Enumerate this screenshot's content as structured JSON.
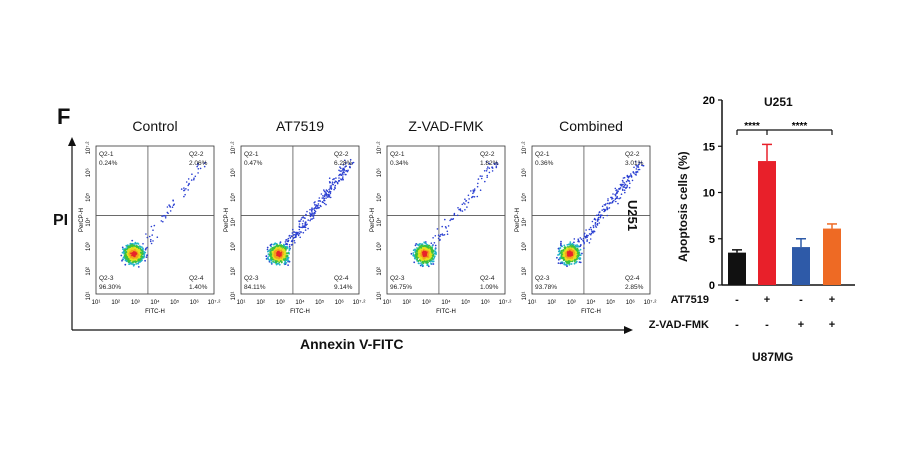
{
  "figure": {
    "panel_letter": "F",
    "y_axis_label": "PI",
    "x_axis_label": "Annexin V-FITC",
    "cell_line_label": "U251",
    "bottom_label": "U87MG"
  },
  "flow_panels": [
    {
      "title": "Control",
      "q1_name": "Q2-1",
      "q1_value": "0.24%",
      "q2_name": "Q2-2",
      "q2_value": "2.06%",
      "q3_name": "Q2-3",
      "q3_value": "96.30%",
      "q4_name": "Q2-4",
      "q4_value": "1.40%",
      "x_axis": "FITC-H",
      "y_axis": "PerCP-H"
    },
    {
      "title": "AT7519",
      "q1_name": "Q2-1",
      "q1_value": "0.47%",
      "q2_name": "Q2-2",
      "q2_value": "6.28%",
      "q3_name": "Q2-3",
      "q3_value": "84.11%",
      "q4_name": "Q2-4",
      "q4_value": "9.14%",
      "x_axis": "FITC-H",
      "y_axis": "PerCP-H"
    },
    {
      "title": "Z-VAD-FMK",
      "q1_name": "Q2-1",
      "q1_value": "0.34%",
      "q2_name": "Q2-2",
      "q2_value": "1.82%",
      "q3_name": "Q2-3",
      "q3_value": "96.75%",
      "q4_name": "Q2-4",
      "q4_value": "1.09%",
      "x_axis": "FITC-H",
      "y_axis": "PerCP-H"
    },
    {
      "title": "Combined",
      "q1_name": "Q2-1",
      "q1_value": "0.36%",
      "q2_name": "Q2-2",
      "q2_value": "3.01%",
      "q3_name": "Q2-3",
      "q3_value": "93.78%",
      "q4_name": "Q2-4",
      "q4_value": "2.85%",
      "x_axis": "FITC-H",
      "y_axis": "PerCP-H"
    }
  ],
  "flow_ticks": {
    "x": [
      "10¹",
      "10²",
      "10³",
      "10⁴",
      "10⁵",
      "10⁶",
      "10⁷·²"
    ],
    "y": [
      "10¹",
      "10²",
      "10³",
      "10⁴",
      "10⁵",
      "10⁶",
      "10⁷·²"
    ]
  },
  "chart_data": {
    "type": "bar",
    "title": "U251",
    "ylabel": "Apoptosis cells (%)",
    "ylim": [
      0,
      20
    ],
    "yticks": [
      0,
      5,
      10,
      15,
      20
    ],
    "ytick_labels": [
      "0",
      "5",
      "10",
      "15",
      "20"
    ],
    "values": [
      3.5,
      13.4,
      4.1,
      6.1
    ],
    "errors": [
      0.3,
      1.8,
      0.9,
      0.5
    ],
    "colors": [
      "#111111",
      "#e8202a",
      "#2e5aa8",
      "#ee6a24"
    ],
    "significance": [
      {
        "from": 0,
        "to": 1,
        "label": "****"
      },
      {
        "from": 1,
        "to": 3,
        "label": "****"
      }
    ],
    "treatment_rows": [
      {
        "label": "AT7519",
        "signs": [
          "-",
          "+",
          "-",
          "+"
        ]
      },
      {
        "label": "Z-VAD-FMK",
        "signs": [
          "-",
          "-",
          "+",
          "+"
        ]
      }
    ]
  }
}
